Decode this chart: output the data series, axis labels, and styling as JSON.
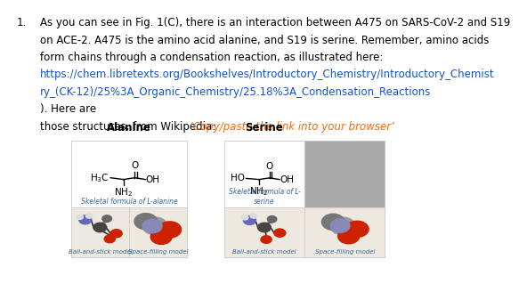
{
  "bg_color": "#ffffff",
  "text_color": "#000000",
  "link_color": "#1155CC",
  "highlight_color": "#FF6600",
  "blue_label_color": "#336699",
  "body_lines": [
    "As you can see in Fig. 1(C), there is an interaction between A475 on SARS-CoV-2 and S19",
    "on ACE-2. A475 is the amino acid alanine, and S19 is serine. Remember, amino acids",
    "form chains through a condensation reaction, as illustrated here:"
  ],
  "link_lines": [
    "https://chem.libretexts.org/Bookshelves/Introductory_Chemistry/Introductory_Chemist",
    "ry_(CK-12)/25%3A_Organic_Chemistry/25.18%3A_Condensation_Reactions"
  ],
  "after_link": "). Here are",
  "wiki_line": "those structures, from Wikipedia:",
  "copy_paste_text": "‘Copy/paste the link into your browser’",
  "alanine_title": "Alanine",
  "serine_title": "Serine",
  "alanine_skeletal_label": "Skeletal formula of L-alanine",
  "serine_skeletal_label": "Skeletal formula of L-\nserine",
  "ball_stick_label": "Ball-and-stick model",
  "space_fill_label": "Space-filling model",
  "serine_space_placeholder_color": "#aaaaaa",
  "box_border_color": "#cccccc",
  "font_size_body": 8.5,
  "font_size_title": 8.5
}
